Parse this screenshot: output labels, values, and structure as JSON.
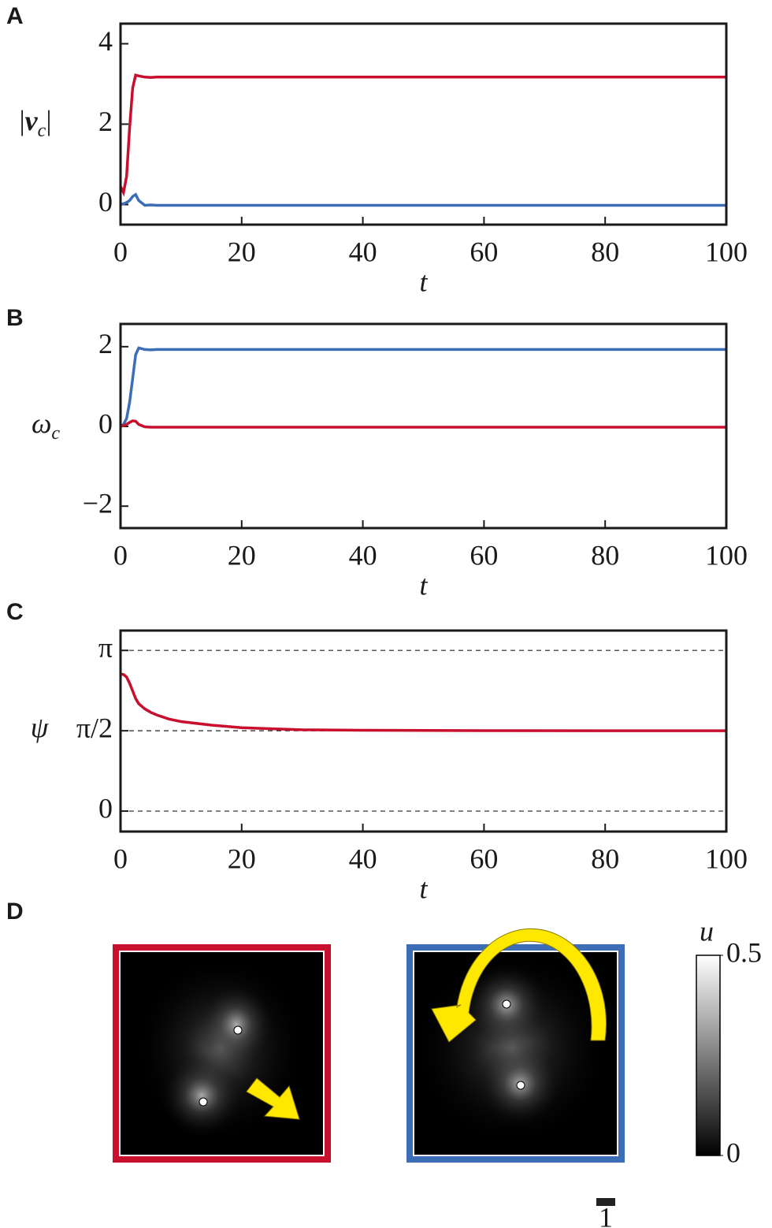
{
  "chart_data": [
    {
      "type": "line",
      "panel_label": "A",
      "ylabel_parts": [
        "|",
        "v",
        "c",
        "|"
      ],
      "xlabel": "t",
      "x": [
        0,
        0.5,
        1,
        1.5,
        2,
        2.5,
        3,
        4,
        5,
        6,
        8,
        10,
        15,
        20,
        30,
        40,
        60,
        80,
        100
      ],
      "series": [
        {
          "color": "#c8102e",
          "values": [
            0.45,
            0.3,
            0.7,
            1.9,
            2.9,
            3.22,
            3.2,
            3.17,
            3.16,
            3.17,
            3.17,
            3.17,
            3.17,
            3.17,
            3.17,
            3.17,
            3.17,
            3.17,
            3.17
          ]
        },
        {
          "color": "#3d6db5",
          "values": [
            0,
            0.02,
            0.05,
            0.1,
            0.2,
            0.25,
            0.1,
            -0.02,
            -0.01,
            -0.02,
            -0.02,
            -0.02,
            -0.02,
            -0.02,
            -0.02,
            -0.02,
            -0.02,
            -0.02,
            -0.02
          ]
        }
      ],
      "xlim": [
        0,
        100
      ],
      "xticks": [
        0,
        20,
        40,
        60,
        80,
        100
      ],
      "ylim": [
        -0.5,
        4.5
      ],
      "yticks": [
        0,
        2,
        4
      ],
      "grid": false
    },
    {
      "type": "line",
      "panel_label": "B",
      "ylabel_parts": [
        "ω",
        "c"
      ],
      "xlabel": "t",
      "x": [
        0,
        0.5,
        1,
        1.5,
        2,
        2.5,
        3,
        4,
        5,
        6,
        8,
        10,
        15,
        20,
        30,
        40,
        60,
        80,
        100
      ],
      "series": [
        {
          "color": "#3d6db5",
          "values": [
            0,
            0.05,
            0.2,
            0.6,
            1.2,
            1.8,
            1.97,
            1.93,
            1.92,
            1.93,
            1.93,
            1.93,
            1.93,
            1.93,
            1.93,
            1.93,
            1.93,
            1.93,
            1.93
          ]
        },
        {
          "color": "#c8102e",
          "values": [
            0,
            0.02,
            0.05,
            0.1,
            0.14,
            0.13,
            0.05,
            -0.01,
            -0.02,
            -0.02,
            -0.02,
            -0.02,
            -0.02,
            -0.02,
            -0.02,
            -0.02,
            -0.02,
            -0.02,
            -0.02
          ]
        }
      ],
      "xlim": [
        0,
        100
      ],
      "xticks": [
        0,
        20,
        40,
        60,
        80,
        100
      ],
      "ylim": [
        -2.55,
        2.57
      ],
      "yticks": [
        {
          "value": -2,
          "label": "−2"
        },
        0,
        2
      ],
      "grid": false
    },
    {
      "type": "line",
      "panel_label": "C",
      "ylabel_parts": [
        "ψ"
      ],
      "xlabel": "t",
      "x": [
        0,
        0.5,
        1,
        1.5,
        2,
        2.5,
        3,
        4,
        5,
        6,
        8,
        10,
        15,
        20,
        30,
        40,
        60,
        80,
        100
      ],
      "series": [
        {
          "color": "#c8102e",
          "values": [
            2.68,
            2.67,
            2.62,
            2.5,
            2.35,
            2.2,
            2.1,
            2.0,
            1.93,
            1.88,
            1.8,
            1.75,
            1.68,
            1.63,
            1.59,
            1.58,
            1.572,
            1.571,
            1.571
          ]
        }
      ],
      "xlim": [
        0,
        100
      ],
      "xticks": [
        0,
        20,
        40,
        60,
        80,
        100
      ],
      "ylim": [
        -0.4,
        3.53
      ],
      "yticks": [
        0,
        {
          "value": 1.5708,
          "label": "π/2"
        },
        {
          "value": 3.1416,
          "label": "π"
        }
      ],
      "grid": true
    }
  ],
  "panel_d": {
    "label": "D",
    "colorbar": {
      "label": "u",
      "lim": [
        0,
        0.5
      ],
      "ticks": [
        0,
        0.5
      ]
    },
    "scale_bar": 1
  }
}
